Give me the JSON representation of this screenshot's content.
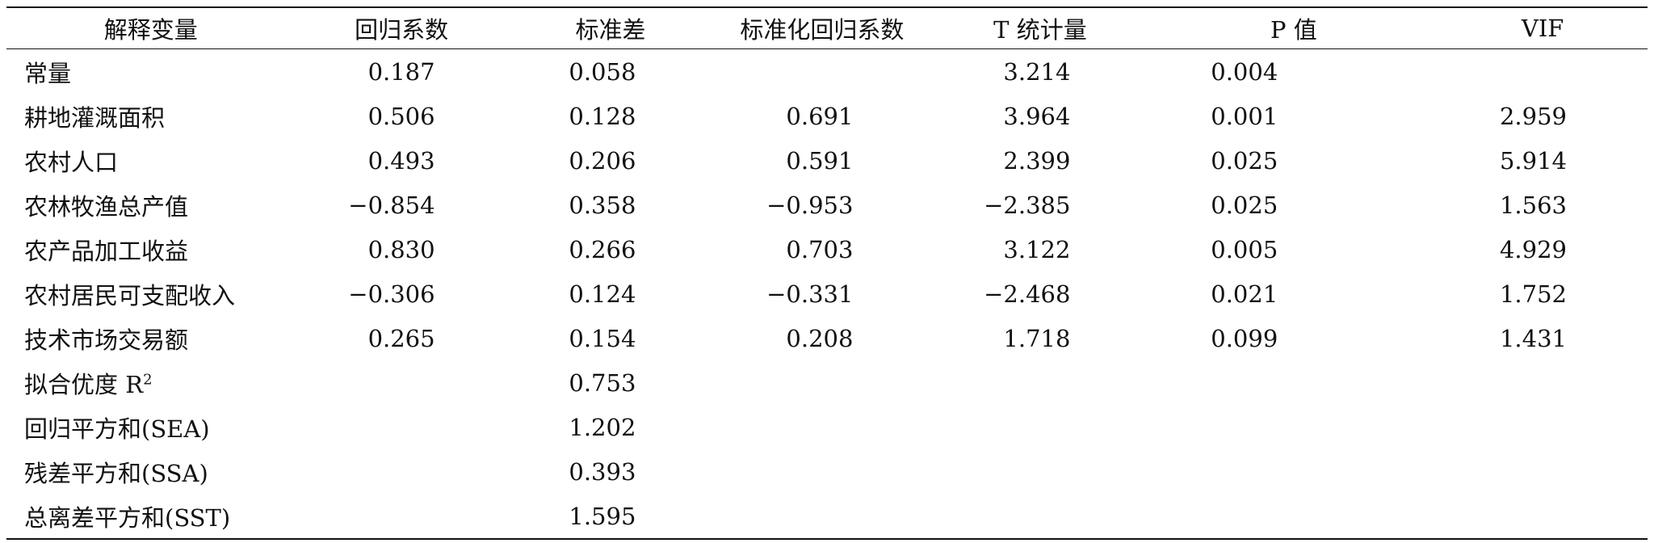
{
  "table": {
    "headers": [
      "解释变量",
      "回归系数",
      "标准差",
      "标准化回归系数",
      "T 统计量",
      "P 值",
      "VIF"
    ],
    "rows": [
      [
        "常量",
        "0.187",
        "0.058",
        "",
        "3.214",
        "0.004",
        ""
      ],
      [
        "耕地灌溉面积",
        "0.506",
        "0.128",
        "0.691",
        "3.964",
        "0.001",
        "2.959"
      ],
      [
        "农村人口",
        "0.493",
        "0.206",
        "0.591",
        "2.399",
        "0.025",
        "5.914"
      ],
      [
        "农林牧渔总产值",
        "−0.854",
        "0.358",
        "−0.953",
        "−2.385",
        "0.025",
        "1.563"
      ],
      [
        "农产品加工收益",
        "0.830",
        "0.266",
        "0.703",
        "3.122",
        "0.005",
        "4.929"
      ],
      [
        "农村居民可支配收入",
        "−0.306",
        "0.124",
        "−0.331",
        "−2.468",
        "0.021",
        "1.752"
      ],
      [
        "技术市场交易额",
        "0.265",
        "0.154",
        "0.208",
        "1.718",
        "0.099",
        "1.431"
      ]
    ],
    "r2_label": "拟合优度 R",
    "r2_sup": "2",
    "r2_value": "0.753",
    "sea_label": "回归平方和(SEA)",
    "sea_value": "1.202",
    "ssa_label": "残差平方和(SSA)",
    "ssa_value": "0.393",
    "sst_label": "总离差平方和(SST)",
    "sst_value": "1.595"
  }
}
